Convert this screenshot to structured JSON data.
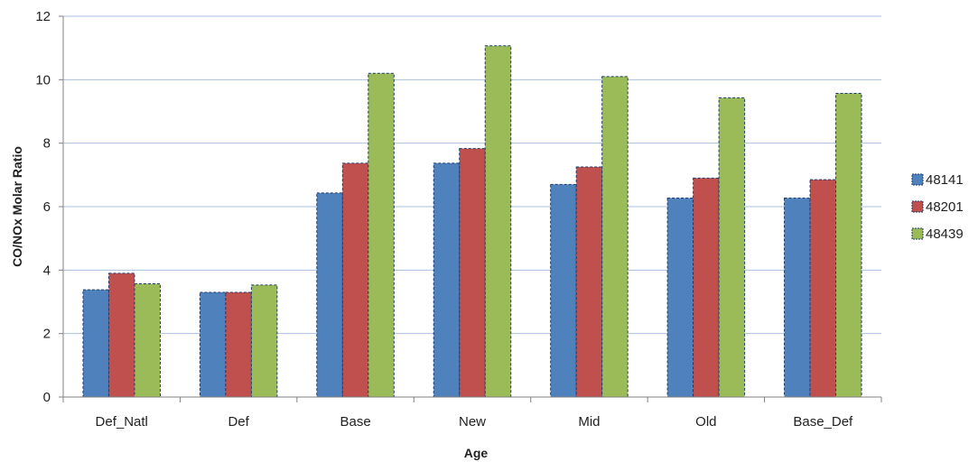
{
  "chart_data": {
    "type": "bar",
    "title": "",
    "xlabel": "Age",
    "ylabel": "CO/NOx Molar Ratio",
    "ylim": [
      0,
      12
    ],
    "yticks": [
      0,
      2,
      4,
      6,
      8,
      10,
      12
    ],
    "grid": true,
    "legend_position": "right",
    "categories": [
      "Def_Natl",
      "Def",
      "Base",
      "New",
      "Mid",
      "Old",
      "Base_Def"
    ],
    "series": [
      {
        "name": "48141",
        "color": "#4f81bd",
        "values": [
          3.38,
          3.3,
          6.43,
          7.37,
          6.7,
          6.27,
          6.27
        ]
      },
      {
        "name": "48201",
        "color": "#c0504d",
        "values": [
          3.9,
          3.3,
          7.37,
          7.83,
          7.25,
          6.9,
          6.85
        ]
      },
      {
        "name": "48439",
        "color": "#9bbb59",
        "values": [
          3.57,
          3.53,
          10.2,
          11.07,
          10.1,
          9.43,
          9.57
        ]
      }
    ]
  }
}
